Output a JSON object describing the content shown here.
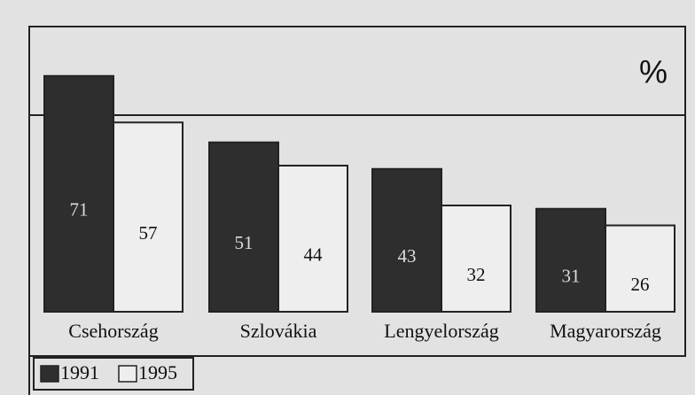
{
  "chart_data": {
    "type": "bar",
    "unit": "%",
    "categories": [
      "Csehország",
      "Szlovákia",
      "Lengyelország",
      "Magyarország"
    ],
    "series": [
      {
        "name": "1991",
        "color": "#2e2e2e",
        "values": [
          71,
          51,
          43,
          31
        ]
      },
      {
        "name": "1995",
        "color": "#eeeeee",
        "values": [
          57,
          44,
          32,
          26
        ]
      }
    ],
    "ylim": [
      0,
      80
    ]
  }
}
